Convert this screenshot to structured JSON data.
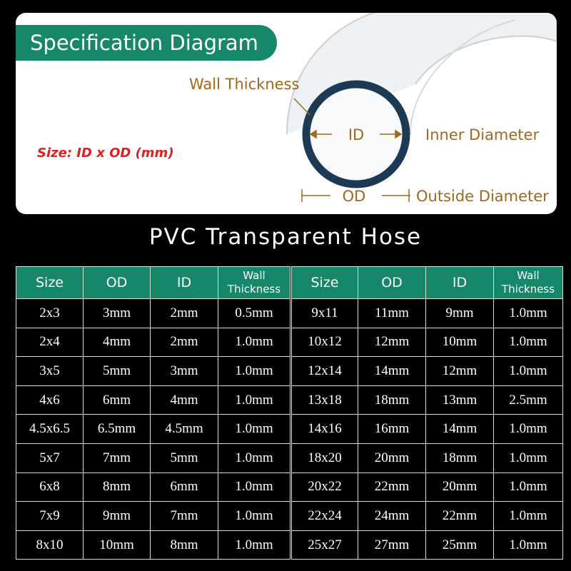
{
  "header": {
    "title": "Specification Diagram"
  },
  "diagram": {
    "size_note": "Size: ID x OD (mm)",
    "wall_label": "Wall Thickness",
    "id_label": "ID",
    "id_desc": "Inner Diameter",
    "od_label": "OD",
    "od_desc": "Outside Diameter"
  },
  "table": {
    "title": "PVC Transparent Hose",
    "headers": [
      "Size",
      "OD",
      "ID",
      "Wall Thickness",
      "Size",
      "OD",
      "ID",
      "Wall Thickness"
    ],
    "rows": [
      [
        "2x3",
        "3mm",
        "2mm",
        "0.5mm",
        "9x11",
        "11mm",
        "9mm",
        "1.0mm"
      ],
      [
        "2x4",
        "4mm",
        "2mm",
        "1.0mm",
        "10x12",
        "12mm",
        "10mm",
        "1.0mm"
      ],
      [
        "3x5",
        "5mm",
        "3mm",
        "1.0mm",
        "12x14",
        "14mm",
        "12mm",
        "1.0mm"
      ],
      [
        "4x6",
        "6mm",
        "4mm",
        "1.0mm",
        "13x18",
        "18mm",
        "13mm",
        "2.5mm"
      ],
      [
        "4.5x6.5",
        "6.5mm",
        "4.5mm",
        "1.0mm",
        "14x16",
        "16mm",
        "14mm",
        "1.0mm"
      ],
      [
        "5x7",
        "7mm",
        "5mm",
        "1.0mm",
        "18x20",
        "20mm",
        "18mm",
        "1.0mm"
      ],
      [
        "6x8",
        "8mm",
        "6mm",
        "1.0mm",
        "20x22",
        "22mm",
        "20mm",
        "1.0mm"
      ],
      [
        "7x9",
        "9mm",
        "7mm",
        "1.0mm",
        "22x24",
        "24mm",
        "22mm",
        "1.0mm"
      ],
      [
        "8x10",
        "10mm",
        "8mm",
        "1.0mm",
        "25x27",
        "27mm",
        "25mm",
        "1.0mm"
      ]
    ]
  }
}
